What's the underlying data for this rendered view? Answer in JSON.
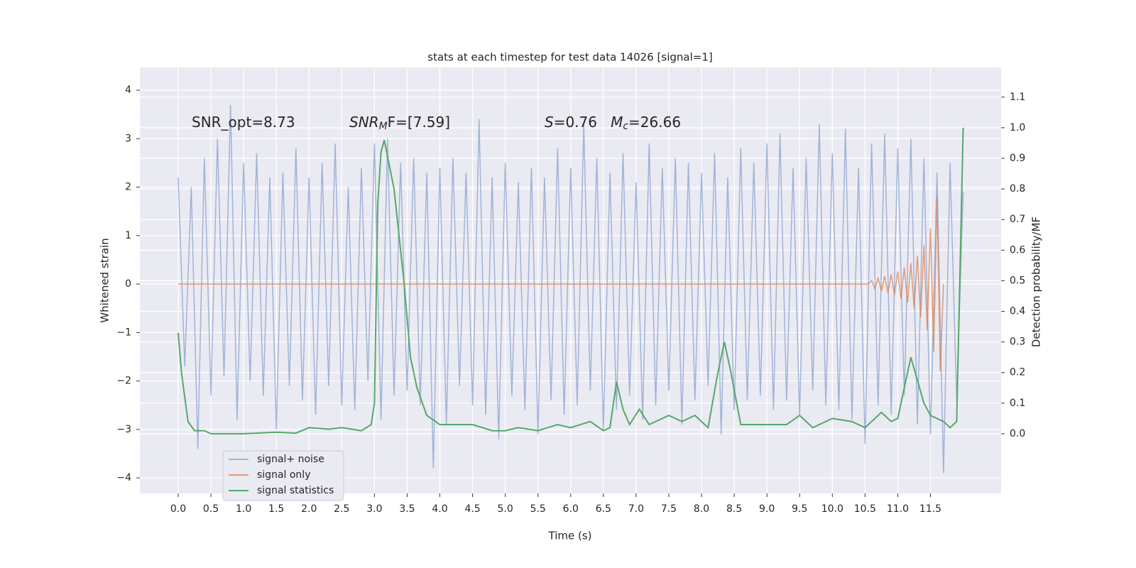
{
  "chart_data": {
    "type": "line",
    "title": "stats at each timestep for test data 14026 [signal=1]",
    "x_label": "Time (s)",
    "y_label": "Whitened strain",
    "y2_label": "Detection probability/MF",
    "grid": true,
    "legend": "lower left",
    "xlim": [
      -0.586,
      12.58
    ],
    "ylim": [
      -4.32,
      4.47
    ],
    "y2lim": [
      -0.195,
      1.197
    ],
    "xticks": [
      {
        "value": 0,
        "label": "0.0"
      },
      {
        "value": 0.5,
        "label": "0.5"
      },
      {
        "value": 1,
        "label": "1.0"
      },
      {
        "value": 1.5,
        "label": "1.5"
      },
      {
        "value": 2,
        "label": "2.0"
      },
      {
        "value": 2.5,
        "label": "2.5"
      },
      {
        "value": 3,
        "label": "3.0"
      },
      {
        "value": 3.5,
        "label": "3.5"
      },
      {
        "value": 4,
        "label": "4.0"
      },
      {
        "value": 4.5,
        "label": "4.5"
      },
      {
        "value": 5,
        "label": "5.0"
      },
      {
        "value": 5.5,
        "label": "5.5"
      },
      {
        "value": 6,
        "label": "6.0"
      },
      {
        "value": 6.5,
        "label": "6.5"
      },
      {
        "value": 7,
        "label": "7.0"
      },
      {
        "value": 7.5,
        "label": "7.5"
      },
      {
        "value": 8,
        "label": "8.0"
      },
      {
        "value": 8.5,
        "label": "8.5"
      },
      {
        "value": 9,
        "label": "9.0"
      },
      {
        "value": 9.5,
        "label": "9.5"
      },
      {
        "value": 10,
        "label": "10.0"
      },
      {
        "value": 10.5,
        "label": "10.5"
      },
      {
        "value": 11,
        "label": "11.0"
      },
      {
        "value": 11.5,
        "label": "11.5"
      }
    ],
    "yticks": [
      {
        "value": -4,
        "label": "−4"
      },
      {
        "value": -3,
        "label": "−3"
      },
      {
        "value": -2,
        "label": "−2"
      },
      {
        "value": -1,
        "label": "−1"
      },
      0,
      1,
      2,
      3,
      4
    ],
    "y2ticks": [
      {
        "value": 0,
        "label": "0.0"
      },
      {
        "value": 0.1,
        "label": "0.1"
      },
      {
        "value": 0.2,
        "label": "0.2"
      },
      {
        "value": 0.3,
        "label": "0.3"
      },
      {
        "value": 0.4,
        "label": "0.4"
      },
      {
        "value": 0.5,
        "label": "0.5"
      },
      {
        "value": 0.6,
        "label": "0.6"
      },
      {
        "value": 0.7,
        "label": "0.7"
      },
      {
        "value": 0.8,
        "label": "0.8"
      },
      {
        "value": 0.9,
        "label": "0.9"
      },
      {
        "value": 1.0,
        "label": "1.0"
      },
      {
        "value": 1.1,
        "label": "1.1"
      }
    ],
    "annotations": [
      [
        {
          "text": "SNR_opt=8.73",
          "style": "normal"
        }
      ],
      [
        {
          "text": "SNR",
          "style": "italic"
        },
        {
          "text": "M",
          "style": "sub"
        },
        {
          "text": "F=[7.59]",
          "style": "normal"
        }
      ],
      [
        {
          "text": "S",
          "style": "italic"
        },
        {
          "text": "=0.76   ",
          "style": "normal"
        },
        {
          "text": "M",
          "style": "italic"
        },
        {
          "text": "c",
          "style": "sub"
        },
        {
          "text": "=26.66",
          "style": "normal"
        }
      ]
    ],
    "series": [
      {
        "name": "signal+ noise",
        "color": "#8ea5d1",
        "x": [
          0,
          0.1,
          0.2,
          0.3,
          0.4,
          0.5,
          0.6,
          0.7,
          0.8,
          0.9,
          1,
          1.1,
          1.2,
          1.3,
          1.4,
          1.5,
          1.6,
          1.7,
          1.8,
          1.9,
          2,
          2.1,
          2.2,
          2.3,
          2.4,
          2.5,
          2.6,
          2.7,
          2.8,
          2.9,
          3,
          3.1,
          3.2,
          3.3,
          3.4,
          3.5,
          3.6,
          3.7,
          3.8,
          3.9,
          4,
          4.1,
          4.2,
          4.3,
          4.4,
          4.5,
          4.6,
          4.7,
          4.8,
          4.9,
          5,
          5.1,
          5.2,
          5.3,
          5.4,
          5.5,
          5.6,
          5.7,
          5.8,
          5.9,
          6,
          6.1,
          6.2,
          6.3,
          6.4,
          6.5,
          6.6,
          6.7,
          6.8,
          6.9,
          7,
          7.1,
          7.2,
          7.3,
          7.4,
          7.5,
          7.6,
          7.7,
          7.8,
          7.9,
          8,
          8.1,
          8.2,
          8.3,
          8.4,
          8.5,
          8.6,
          8.7,
          8.8,
          8.9,
          9,
          9.1,
          9.2,
          9.3,
          9.4,
          9.5,
          9.6,
          9.7,
          9.8,
          9.9,
          10,
          10.1,
          10.2,
          10.3,
          10.4,
          10.5,
          10.6,
          10.7,
          10.8,
          10.9,
          11,
          11.1,
          11.2,
          11.3,
          11.4,
          11.5,
          11.6,
          11.7,
          11.8,
          11.9,
          12
        ],
        "values": [
          2.2,
          -1.7,
          2.0,
          -3.4,
          2.6,
          -2.3,
          3.0,
          -1.9,
          3.7,
          -2.8,
          2.5,
          -2.0,
          2.7,
          -2.3,
          2.2,
          -3.0,
          2.3,
          -2.1,
          2.8,
          -2.4,
          2.2,
          -2.7,
          2.5,
          -2.1,
          2.9,
          -2.5,
          2.0,
          -2.6,
          2.4,
          -2.0,
          2.9,
          -2.8,
          3.0,
          -2.3,
          2.5,
          -2.2,
          2.6,
          -2.5,
          2.3,
          -3.8,
          2.4,
          -2.9,
          2.6,
          -2.1,
          2.3,
          -2.5,
          3.4,
          -2.7,
          2.2,
          -3.2,
          2.5,
          -2.3,
          2.1,
          -2.6,
          2.4,
          -3.1,
          2.2,
          -2.4,
          2.8,
          -2.7,
          2.4,
          -2.5,
          3.3,
          -2.2,
          2.6,
          -3.0,
          2.3,
          -2.6,
          2.7,
          -2.3,
          2.1,
          -2.8,
          2.9,
          -2.5,
          2.4,
          -2.2,
          2.6,
          -2.9,
          2.5,
          -2.4,
          2.3,
          -2.1,
          2.7,
          -3.1,
          2.2,
          -2.6,
          2.8,
          -2.4,
          2.5,
          -2.3,
          2.9,
          -2.6,
          3.1,
          -2.4,
          2.4,
          -2.7,
          2.6,
          -2.2,
          3.3,
          -2.5,
          2.7,
          -2.6,
          3.2,
          -2.8,
          2.4,
          -3.3,
          2.9,
          -2.5,
          3.1,
          -2.7,
          2.8,
          -2.3,
          3.0,
          -2.9,
          2.6,
          -3.1,
          2.3,
          -3.9,
          2.5,
          -2.4,
          1.9
        ]
      },
      {
        "name": "signal only",
        "color": "#dd8452",
        "x": [
          0,
          10.55,
          10.6,
          10.65,
          10.7,
          10.75,
          10.8,
          10.85,
          10.9,
          10.95,
          11,
          11.05,
          11.1,
          11.15,
          11.2,
          11.25,
          11.3,
          11.35,
          11.4,
          11.45,
          11.5,
          11.55,
          11.6,
          11.65,
          11.7
        ],
        "values": [
          0,
          0,
          0.08,
          -0.1,
          0.12,
          -0.14,
          0.16,
          -0.18,
          0.2,
          -0.23,
          0.26,
          -0.3,
          0.34,
          -0.38,
          0.43,
          -0.5,
          0.58,
          -0.68,
          0.8,
          -0.95,
          1.15,
          -1.4,
          1.8,
          -1.8,
          0
        ]
      },
      {
        "name": "signal statistics",
        "color": "#55a868",
        "axis": "y2",
        "x": [
          0,
          0.05,
          0.15,
          0.25,
          0.4,
          0.5,
          1,
          1.5,
          1.8,
          2,
          2.3,
          2.5,
          2.8,
          2.95,
          3,
          3.05,
          3.1,
          3.15,
          3.3,
          3.45,
          3.55,
          3.65,
          3.8,
          4,
          4.3,
          4.5,
          4.8,
          5,
          5.2,
          5.5,
          5.8,
          6,
          6.3,
          6.5,
          6.6,
          6.7,
          6.8,
          6.9,
          7.05,
          7.2,
          7.5,
          7.7,
          7.9,
          8.1,
          8.25,
          8.35,
          8.45,
          8.6,
          9,
          9.3,
          9.5,
          9.7,
          10,
          10.3,
          10.5,
          10.75,
          10.9,
          11,
          11.2,
          11.4,
          11.5,
          11.7,
          11.8,
          11.9,
          12
        ],
        "values": [
          0.33,
          0.2,
          0.04,
          0.01,
          0.01,
          0.0,
          0.0,
          0.005,
          0.002,
          0.02,
          0.015,
          0.02,
          0.01,
          0.03,
          0.1,
          0.75,
          0.92,
          0.96,
          0.8,
          0.5,
          0.25,
          0.15,
          0.06,
          0.03,
          0.03,
          0.03,
          0.01,
          0.01,
          0.02,
          0.01,
          0.03,
          0.02,
          0.04,
          0.01,
          0.02,
          0.17,
          0.08,
          0.03,
          0.08,
          0.03,
          0.06,
          0.04,
          0.06,
          0.02,
          0.2,
          0.3,
          0.2,
          0.03,
          0.03,
          0.03,
          0.06,
          0.02,
          0.05,
          0.04,
          0.02,
          0.07,
          0.04,
          0.05,
          0.25,
          0.1,
          0.06,
          0.04,
          0.02,
          0.04,
          1.0
        ]
      }
    ]
  }
}
